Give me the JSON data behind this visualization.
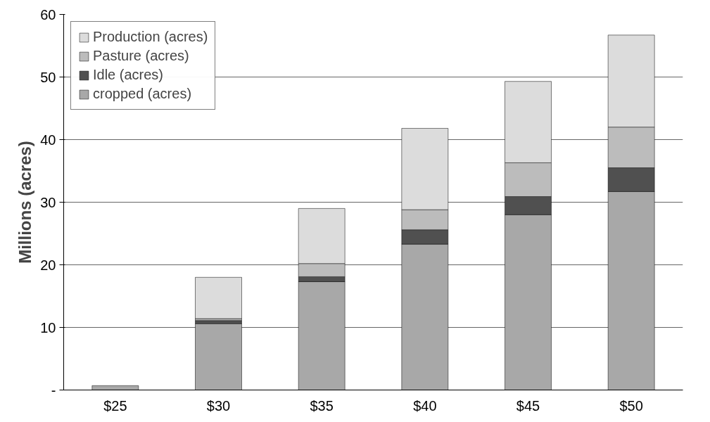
{
  "chart_data": {
    "type": "bar",
    "stacked": true,
    "ylabel": "Millions (acres)",
    "categories": [
      "$25",
      "$30",
      "$35",
      "$40",
      "$45",
      "$50"
    ],
    "series": [
      {
        "name": "cropped (acres)",
        "color": "#a8a8a8",
        "values": [
          0.7,
          10.6,
          17.3,
          23.3,
          28.0,
          31.7
        ]
      },
      {
        "name": "Idle (acres)",
        "color": "#505050",
        "values": [
          null,
          0.5,
          0.8,
          2.3,
          2.9,
          3.8
        ]
      },
      {
        "name": "Pasture (acres)",
        "color": "#bcbcbc",
        "values": [
          null,
          0.3,
          2.1,
          3.2,
          5.4,
          6.5
        ]
      },
      {
        "name": "Production (acres)",
        "color": "#dcdcdc",
        "values": [
          null,
          6.6,
          8.8,
          13.0,
          13.0,
          14.7
        ]
      }
    ],
    "ylim": [
      0,
      60
    ],
    "yticks": [
      {
        "value": 0,
        "label": "-"
      },
      10,
      20,
      30,
      40,
      50,
      60
    ],
    "grid": "y",
    "legend": "top left"
  }
}
